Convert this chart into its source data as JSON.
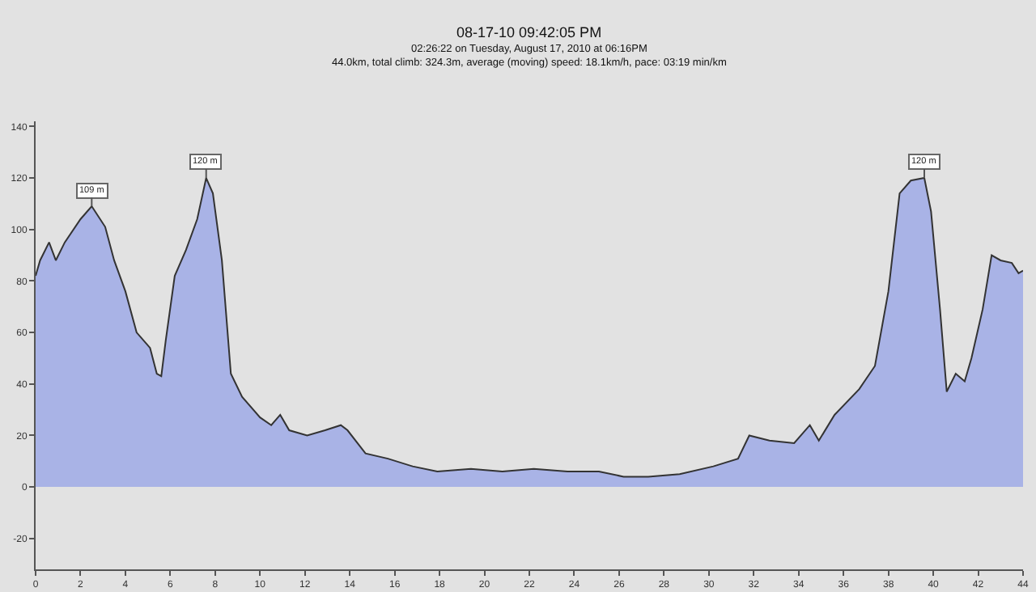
{
  "chart_data": {
    "type": "area",
    "title": "08-17-10 09:42:05 PM",
    "subtitle": "02:26:22 on Tuesday, August 17, 2010 at 06:16PM\n44.0km, total climb: 324.3m, average (moving) speed: 18.1km/h, pace: 03:19 min/km",
    "x": [
      0,
      0.2,
      0.6,
      0.9,
      1.3,
      2.0,
      2.5,
      3.1,
      3.5,
      4.0,
      4.5,
      5.1,
      5.4,
      5.6,
      5.8,
      6.2,
      6.7,
      7.2,
      7.6,
      7.9,
      8.3,
      8.7,
      9.2,
      10.0,
      10.5,
      10.9,
      11.3,
      12.1,
      12.9,
      13.6,
      13.9,
      14.7,
      15.7,
      16.8,
      17.9,
      19.4,
      20.8,
      22.2,
      23.7,
      25.1,
      26.2,
      27.3,
      28.7,
      30.2,
      31.3,
      31.8,
      32.7,
      33.8,
      34.5,
      34.9,
      35.6,
      36.7,
      37.4,
      38.0,
      38.5,
      39.0,
      39.6,
      39.9,
      40.3,
      40.6,
      41.0,
      41.4,
      41.7,
      42.2,
      42.6,
      43.0,
      43.5,
      43.8,
      44.0
    ],
    "series": [
      {
        "color": "#a9b3e6",
        "values": [
          82,
          88,
          95,
          88,
          95,
          104,
          109,
          101,
          88,
          76,
          60,
          54,
          44,
          43,
          57,
          82,
          92,
          104,
          120,
          114,
          88,
          44,
          35,
          27,
          24,
          28,
          22,
          20,
          22,
          24,
          22,
          13,
          11,
          8,
          6,
          7,
          6,
          7,
          6,
          6,
          4,
          4,
          5,
          8,
          11,
          20,
          18,
          17,
          24,
          18,
          28,
          38,
          47,
          76,
          114,
          119,
          120,
          107,
          69,
          37,
          44,
          41,
          50,
          69,
          90,
          88,
          87,
          83,
          84
        ]
      }
    ],
    "xlim": [
      0,
      44
    ],
    "xticks": [
      0,
      2,
      4,
      6,
      8,
      10,
      12,
      14,
      16,
      18,
      20,
      22,
      24,
      26,
      28,
      30,
      32,
      34,
      36,
      38,
      40,
      42,
      44
    ],
    "ylim": [
      -32,
      142
    ],
    "yticks": [
      -20,
      0,
      20,
      40,
      60,
      80,
      100,
      120,
      140
    ],
    "grid": false,
    "marker": "none",
    "line_style": "solid",
    "annotations": [
      {
        "text": "109 m",
        "x": 2.5,
        "y": 109
      },
      {
        "text": "120 m",
        "x": 7.6,
        "y": 120
      },
      {
        "text": "120 m",
        "x": 39.6,
        "y": 120
      }
    ]
  }
}
